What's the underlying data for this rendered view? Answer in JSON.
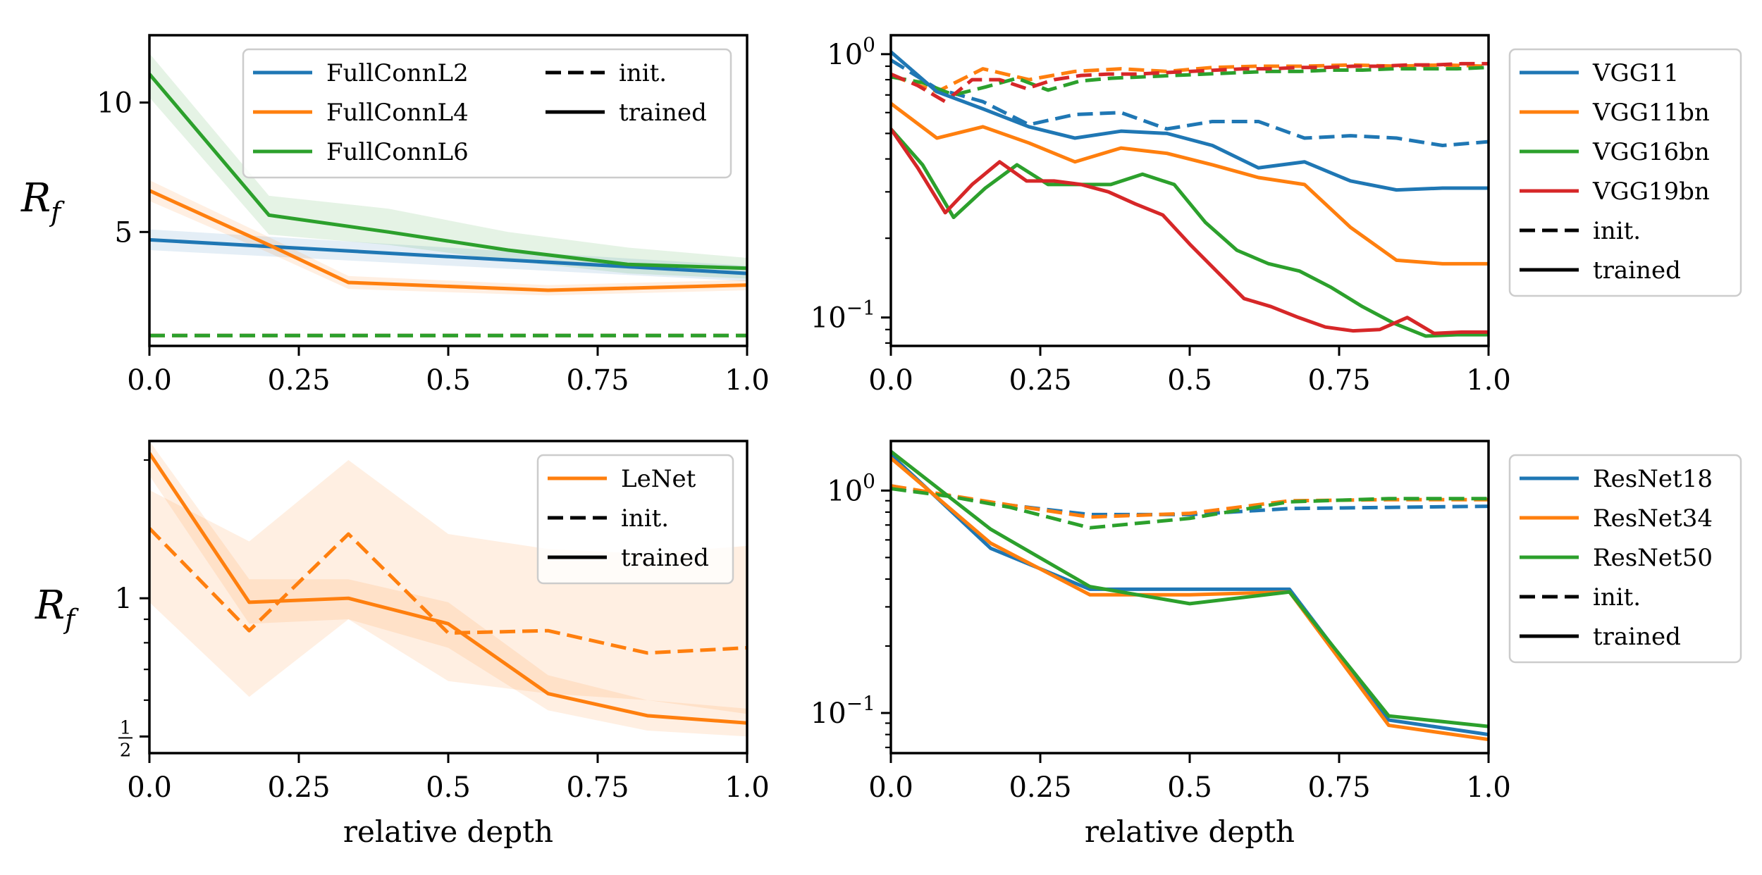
{
  "figure": {
    "ylabel_main": "R",
    "ylabel_sub": "f",
    "xlabel": "relative depth"
  },
  "colors": {
    "blue": "#1f77b4",
    "orange": "#ff7f0e",
    "green": "#2ca02c",
    "red": "#d62728"
  },
  "chart_data": [
    {
      "id": "fc",
      "type": "line",
      "title": "",
      "xlabel": "",
      "ylabel": "R_f",
      "yscale": "linear",
      "xlim": [
        0,
        1
      ],
      "ylim": [
        0.6,
        12.6
      ],
      "xticks": [
        0,
        0.25,
        0.5,
        0.75,
        1
      ],
      "xtick_labels": [
        "0.0",
        "0.25",
        "0.5",
        "0.75",
        "1.0"
      ],
      "yticks": [
        5,
        10
      ],
      "ytick_labels": [
        "5",
        "10"
      ],
      "legend": {
        "location": "top-right",
        "columns": 2,
        "entries": [
          {
            "label": "FullConnL2",
            "color": "blue",
            "style": "solid"
          },
          {
            "label": "FullConnL4",
            "color": "orange",
            "style": "solid"
          },
          {
            "label": "FullConnL6",
            "color": "green",
            "style": "solid"
          },
          {
            "label": "init.",
            "color": "black",
            "style": "dashed"
          },
          {
            "label": "trained",
            "color": "black",
            "style": "solid"
          }
        ]
      },
      "series": [
        {
          "name": "FullConnL2",
          "state": "init.",
          "color": "blue",
          "style": "dashed",
          "x": [
            0,
            1
          ],
          "y": [
            1.0,
            1.0
          ]
        },
        {
          "name": "FullConnL4",
          "state": "init.",
          "color": "orange",
          "style": "dashed",
          "x": [
            0,
            1
          ],
          "y": [
            1.0,
            1.0
          ]
        },
        {
          "name": "FullConnL6",
          "state": "init.",
          "color": "green",
          "style": "dashed",
          "x": [
            0,
            1
          ],
          "y": [
            1.0,
            1.0
          ]
        },
        {
          "name": "FullConnL2",
          "state": "trained",
          "color": "blue",
          "style": "solid",
          "x": [
            0,
            1
          ],
          "y": [
            4.7,
            3.4
          ],
          "band": {
            "lower": [
              4.3,
              3.1
            ],
            "upper": [
              5.1,
              3.7
            ]
          }
        },
        {
          "name": "FullConnL4",
          "state": "trained",
          "color": "orange",
          "style": "solid",
          "x": [
            0,
            0.2,
            0.333,
            0.667,
            1
          ],
          "y": [
            6.6,
            4.5,
            3.05,
            2.75,
            2.95
          ],
          "band": {
            "lower": [
              6.2,
              4.2,
              2.8,
              2.55,
              2.75
            ],
            "upper": [
              7.0,
              4.8,
              3.3,
              2.95,
              3.15
            ]
          }
        },
        {
          "name": "FullConnL6",
          "state": "trained",
          "color": "green",
          "style": "solid",
          "x": [
            0,
            0.2,
            0.4,
            0.6,
            0.8,
            1
          ],
          "y": [
            11.1,
            5.65,
            5.0,
            4.3,
            3.75,
            3.6
          ],
          "band": {
            "lower": [
              10.2,
              4.9,
              4.5,
              3.9,
              3.4,
              3.2
            ],
            "upper": [
              11.9,
              6.4,
              5.9,
              5.0,
              4.4,
              4.0
            ]
          }
        }
      ]
    },
    {
      "id": "vgg",
      "type": "line",
      "title": "",
      "xlabel": "",
      "ylabel": "",
      "yscale": "log",
      "xlim": [
        0,
        1
      ],
      "ylim": [
        0.078,
        1.18
      ],
      "xticks": [
        0,
        0.25,
        0.5,
        0.75,
        1
      ],
      "xtick_labels": [
        "0.0",
        "0.25",
        "0.5",
        "0.75",
        "1.0"
      ],
      "yticks_major": [
        0.1,
        1
      ],
      "ytick_labels": [
        {
          "base": "10",
          "exp": "−1"
        },
        {
          "base": "10",
          "exp": "0"
        }
      ],
      "legend": {
        "location": "outside-right",
        "columns": 1,
        "entries": [
          {
            "label": "VGG11",
            "color": "blue",
            "style": "solid"
          },
          {
            "label": "VGG11bn",
            "color": "orange",
            "style": "solid"
          },
          {
            "label": "VGG16bn",
            "color": "green",
            "style": "solid"
          },
          {
            "label": "VGG19bn",
            "color": "red",
            "style": "solid"
          },
          {
            "label": "init.",
            "color": "black",
            "style": "dashed"
          },
          {
            "label": "trained",
            "color": "black",
            "style": "solid"
          }
        ]
      },
      "series": [
        {
          "name": "VGG11",
          "state": "init.",
          "color": "blue",
          "style": "dashed",
          "x": [
            0,
            0.077,
            0.154,
            0.231,
            0.308,
            0.385,
            0.462,
            0.538,
            0.615,
            0.692,
            0.769,
            0.846,
            0.923,
            1.0
          ],
          "y": [
            0.95,
            0.74,
            0.66,
            0.54,
            0.59,
            0.6,
            0.52,
            0.555,
            0.555,
            0.48,
            0.49,
            0.48,
            0.45,
            0.465
          ]
        },
        {
          "name": "VGG11bn",
          "state": "init.",
          "color": "orange",
          "style": "dashed",
          "x": [
            0,
            0.077,
            0.154,
            0.231,
            0.308,
            0.385,
            0.462,
            0.538,
            0.615,
            0.692,
            0.769,
            0.846,
            0.923,
            1.0
          ],
          "y": [
            0.83,
            0.72,
            0.88,
            0.8,
            0.86,
            0.88,
            0.86,
            0.89,
            0.9,
            0.9,
            0.91,
            0.9,
            0.91,
            0.9
          ]
        },
        {
          "name": "VGG16bn",
          "state": "init.",
          "color": "green",
          "style": "dashed",
          "x": [
            0,
            0.053,
            0.105,
            0.158,
            0.211,
            0.263,
            0.316,
            0.368,
            0.421,
            0.474,
            0.526,
            0.579,
            0.632,
            0.684,
            0.737,
            0.789,
            0.842,
            0.895,
            0.947,
            1.0
          ],
          "y": [
            0.82,
            0.78,
            0.7,
            0.75,
            0.81,
            0.73,
            0.79,
            0.81,
            0.82,
            0.83,
            0.84,
            0.85,
            0.86,
            0.86,
            0.87,
            0.87,
            0.88,
            0.88,
            0.88,
            0.89
          ]
        },
        {
          "name": "VGG19bn",
          "state": "init.",
          "color": "red",
          "style": "dashed",
          "x": [
            0,
            0.045,
            0.091,
            0.136,
            0.182,
            0.227,
            0.273,
            0.318,
            0.364,
            0.409,
            0.455,
            0.5,
            0.545,
            0.591,
            0.636,
            0.682,
            0.727,
            0.773,
            0.818,
            0.864,
            0.909,
            0.955,
            1.0
          ],
          "y": [
            0.84,
            0.76,
            0.66,
            0.8,
            0.8,
            0.74,
            0.8,
            0.83,
            0.84,
            0.84,
            0.85,
            0.86,
            0.87,
            0.88,
            0.88,
            0.89,
            0.89,
            0.9,
            0.9,
            0.91,
            0.91,
            0.92,
            0.92
          ]
        },
        {
          "name": "VGG11",
          "state": "trained",
          "color": "blue",
          "style": "solid",
          "x": [
            0,
            0.077,
            0.154,
            0.231,
            0.308,
            0.385,
            0.462,
            0.538,
            0.615,
            0.692,
            0.769,
            0.846,
            0.923,
            1.0
          ],
          "y": [
            1.02,
            0.72,
            0.62,
            0.53,
            0.48,
            0.51,
            0.5,
            0.45,
            0.37,
            0.39,
            0.33,
            0.305,
            0.31,
            0.31
          ]
        },
        {
          "name": "VGG11bn",
          "state": "trained",
          "color": "orange",
          "style": "solid",
          "x": [
            0,
            0.077,
            0.154,
            0.231,
            0.308,
            0.385,
            0.462,
            0.538,
            0.615,
            0.692,
            0.769,
            0.846,
            0.923,
            1.0
          ],
          "y": [
            0.65,
            0.48,
            0.53,
            0.46,
            0.39,
            0.44,
            0.42,
            0.38,
            0.34,
            0.32,
            0.22,
            0.165,
            0.16,
            0.16
          ]
        },
        {
          "name": "VGG16bn",
          "state": "trained",
          "color": "green",
          "style": "solid",
          "x": [
            0,
            0.053,
            0.105,
            0.158,
            0.211,
            0.263,
            0.316,
            0.368,
            0.421,
            0.474,
            0.526,
            0.579,
            0.632,
            0.684,
            0.737,
            0.789,
            0.842,
            0.895,
            0.947,
            1.0
          ],
          "y": [
            0.52,
            0.38,
            0.24,
            0.31,
            0.38,
            0.32,
            0.32,
            0.32,
            0.35,
            0.32,
            0.23,
            0.18,
            0.16,
            0.15,
            0.13,
            0.11,
            0.095,
            0.085,
            0.086,
            0.086
          ]
        },
        {
          "name": "VGG19bn",
          "state": "trained",
          "color": "red",
          "style": "solid",
          "x": [
            0,
            0.045,
            0.091,
            0.136,
            0.182,
            0.227,
            0.273,
            0.318,
            0.364,
            0.409,
            0.455,
            0.5,
            0.545,
            0.591,
            0.636,
            0.682,
            0.727,
            0.773,
            0.818,
            0.864,
            0.909,
            0.955,
            1.0
          ],
          "y": [
            0.52,
            0.37,
            0.25,
            0.32,
            0.39,
            0.33,
            0.33,
            0.32,
            0.3,
            0.27,
            0.245,
            0.19,
            0.15,
            0.118,
            0.11,
            0.1,
            0.092,
            0.089,
            0.09,
            0.1,
            0.087,
            0.088,
            0.088
          ]
        }
      ]
    },
    {
      "id": "lenet",
      "type": "line",
      "title": "",
      "xlabel": "relative depth",
      "ylabel": "R_f",
      "yscale": "log",
      "xlim": [
        0,
        1
      ],
      "ylim": [
        0.46,
        2.2
      ],
      "xticks": [
        0,
        0.25,
        0.5,
        0.75,
        1
      ],
      "xtick_labels": [
        "0.0",
        "0.25",
        "0.5",
        "0.75",
        "1.0"
      ],
      "yticks": [
        1
      ],
      "ytick_labels": [
        "1"
      ],
      "yticks_fraction": [
        {
          "value": 0.5,
          "numerator": "1",
          "denominator": "2"
        }
      ],
      "legend": {
        "location": "top-right",
        "columns": 1,
        "entries": [
          {
            "label": "LeNet",
            "color": "orange",
            "style": "solid"
          },
          {
            "label": "init.",
            "color": "black",
            "style": "dashed"
          },
          {
            "label": "trained",
            "color": "black",
            "style": "solid"
          }
        ]
      },
      "series": [
        {
          "name": "LeNet",
          "state": "init.",
          "color": "orange",
          "style": "dashed",
          "x": [
            0,
            0.167,
            0.333,
            0.5,
            0.667,
            0.833,
            1.0
          ],
          "y": [
            1.42,
            0.85,
            1.38,
            0.84,
            0.85,
            0.76,
            0.78
          ],
          "band": {
            "lower": [
              0.98,
              0.61,
              0.9,
              0.66,
              0.62,
              0.6,
              0.56
            ],
            "upper": [
              1.72,
              1.33,
              2.0,
              1.38,
              1.28,
              1.25,
              1.3
            ]
          }
        },
        {
          "name": "LeNet",
          "state": "trained",
          "color": "orange",
          "style": "solid",
          "x": [
            0,
            0.167,
            0.333,
            0.5,
            0.667,
            0.833,
            1.0
          ],
          "y": [
            2.07,
            0.98,
            1.0,
            0.88,
            0.62,
            0.555,
            0.535
          ],
          "band": {
            "lower": [
              1.85,
              0.88,
              0.9,
              0.78,
              0.57,
              0.515,
              0.5
            ],
            "upper": [
              2.2,
              1.1,
              1.1,
              0.98,
              0.68,
              0.6,
              0.575
            ]
          }
        }
      ]
    },
    {
      "id": "resnet",
      "type": "line",
      "title": "",
      "xlabel": "relative depth",
      "ylabel": "",
      "yscale": "log",
      "xlim": [
        0,
        1
      ],
      "ylim": [
        0.066,
        1.67
      ],
      "xticks": [
        0,
        0.25,
        0.5,
        0.75,
        1
      ],
      "xtick_labels": [
        "0.0",
        "0.25",
        "0.5",
        "0.75",
        "1.0"
      ],
      "yticks_major": [
        0.1,
        1
      ],
      "ytick_labels": [
        {
          "base": "10",
          "exp": "−1"
        },
        {
          "base": "10",
          "exp": "0"
        }
      ],
      "legend": {
        "location": "outside-right",
        "columns": 1,
        "entries": [
          {
            "label": "ResNet18",
            "color": "blue",
            "style": "solid"
          },
          {
            "label": "ResNet34",
            "color": "orange",
            "style": "solid"
          },
          {
            "label": "ResNet50",
            "color": "green",
            "style": "solid"
          },
          {
            "label": "init.",
            "color": "black",
            "style": "dashed"
          },
          {
            "label": "trained",
            "color": "black",
            "style": "solid"
          }
        ]
      },
      "series": [
        {
          "name": "ResNet18",
          "state": "init.",
          "color": "blue",
          "style": "dashed",
          "x": [
            0,
            0.167,
            0.333,
            0.5,
            0.667,
            0.833,
            1.0
          ],
          "y": [
            1.05,
            0.88,
            0.78,
            0.78,
            0.83,
            0.84,
            0.85
          ]
        },
        {
          "name": "ResNet34",
          "state": "init.",
          "color": "orange",
          "style": "dashed",
          "x": [
            0,
            0.1,
            0.2,
            0.333,
            0.5,
            0.667,
            0.833,
            1.0
          ],
          "y": [
            1.05,
            0.95,
            0.86,
            0.76,
            0.79,
            0.9,
            0.91,
            0.91
          ]
        },
        {
          "name": "ResNet50",
          "state": "init.",
          "color": "green",
          "style": "dashed",
          "x": [
            0,
            0.1,
            0.2,
            0.333,
            0.5,
            0.667,
            0.833,
            1.0
          ],
          "y": [
            1.02,
            0.94,
            0.84,
            0.68,
            0.75,
            0.89,
            0.92,
            0.92
          ]
        },
        {
          "name": "ResNet18",
          "state": "trained",
          "color": "blue",
          "style": "solid",
          "x": [
            0,
            0.167,
            0.333,
            0.5,
            0.667,
            0.833,
            1.0
          ],
          "y": [
            1.45,
            0.55,
            0.36,
            0.36,
            0.36,
            0.093,
            0.08
          ]
        },
        {
          "name": "ResNet34",
          "state": "trained",
          "color": "orange",
          "style": "solid",
          "x": [
            0,
            0.167,
            0.333,
            0.5,
            0.667,
            0.833,
            1.0
          ],
          "y": [
            1.4,
            0.58,
            0.34,
            0.34,
            0.35,
            0.088,
            0.076
          ]
        },
        {
          "name": "ResNet50",
          "state": "trained",
          "color": "green",
          "style": "solid",
          "x": [
            0,
            0.167,
            0.333,
            0.5,
            0.667,
            0.833,
            1.0
          ],
          "y": [
            1.5,
            0.67,
            0.37,
            0.31,
            0.35,
            0.097,
            0.087
          ]
        }
      ]
    }
  ]
}
